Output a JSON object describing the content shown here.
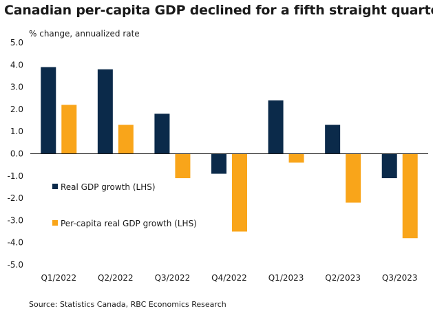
{
  "chart_data": {
    "type": "bar",
    "title": "Canadian per-capita GDP declined for a fifth straight quarter",
    "ylabel": "% change, annualized rate",
    "xlabel": "",
    "categories": [
      "Q1/2022",
      "Q2/2022",
      "Q3/2022",
      "Q4/2022",
      "Q1/2023",
      "Q2/2023",
      "Q3/2023"
    ],
    "series": [
      {
        "name": "Real GDP growth (LHS)",
        "color": "#0b2a4a",
        "values": [
          3.9,
          3.8,
          1.8,
          -0.9,
          2.4,
          1.3,
          -1.1
        ]
      },
      {
        "name": "Per-capita real GDP growth (LHS)",
        "color": "#f9a51a",
        "values": [
          2.2,
          1.3,
          -1.1,
          -3.5,
          -0.4,
          -2.2,
          -3.8
        ]
      }
    ],
    "ylim": [
      -5.0,
      5.0
    ],
    "yticks": [
      "5.0",
      "4.0",
      "3.0",
      "2.0",
      "1.0",
      "0.0",
      "-1.0",
      "-2.0",
      "-3.0",
      "-4.0",
      "-5.0"
    ],
    "ytick_values": [
      5,
      4,
      3,
      2,
      1,
      0,
      -1,
      -2,
      -3,
      -4,
      -5
    ],
    "grid": false,
    "legend": "inside-left",
    "source": "Source: Statistics Canada, RBC Economics Research"
  }
}
